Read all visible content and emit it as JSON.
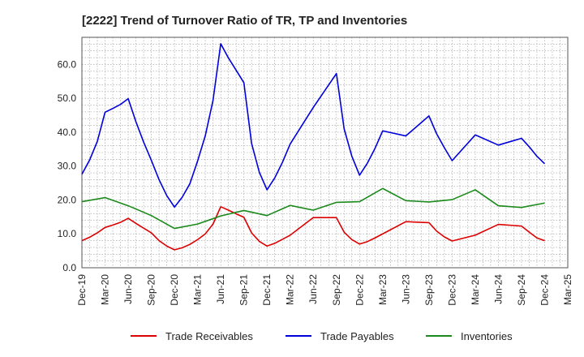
{
  "chart_data": {
    "type": "line",
    "title": "[2222]  Trend of Turnover Ratio of TR, TP and Inventories",
    "xlabel": "",
    "ylabel": "",
    "ylim": [
      0,
      68
    ],
    "y_ticks": [
      "0.0",
      "10.0",
      "20.0",
      "30.0",
      "40.0",
      "50.0",
      "60.0"
    ],
    "y_tick_values": [
      0,
      10,
      20,
      30,
      40,
      50,
      60
    ],
    "x_ticks": [
      "Dec-19",
      "Mar-20",
      "Jun-20",
      "Sep-20",
      "Dec-20",
      "Mar-21",
      "Jun-21",
      "Sep-21",
      "Dec-21",
      "Mar-22",
      "Jun-22",
      "Sep-22",
      "Dec-22",
      "Mar-23",
      "Jun-23",
      "Sep-23",
      "Dec-23",
      "Mar-24",
      "Jun-24",
      "Sep-24",
      "Dec-24",
      "Mar-25"
    ],
    "grid": true,
    "legend_position": "bottom",
    "series": [
      {
        "name": "Trade Receivables",
        "color": "#dd0000",
        "x": [
          "2019-12",
          "2020-01",
          "2020-02",
          "2020-03",
          "2020-04",
          "2020-05",
          "2020-06",
          "2020-07",
          "2020-08",
          "2020-09",
          "2020-10",
          "2020-11",
          "2020-12",
          "2021-01",
          "2021-02",
          "2021-03",
          "2021-04",
          "2021-05",
          "2021-06",
          "2021-07",
          "2021-08",
          "2021-09",
          "2021-10",
          "2021-11",
          "2021-12",
          "2022-01",
          "2022-02",
          "2022-03",
          "2022-06",
          "2022-09",
          "2022-10",
          "2022-11",
          "2022-12",
          "2023-01",
          "2023-02",
          "2023-03",
          "2023-06",
          "2023-09",
          "2023-10",
          "2023-11",
          "2023-12",
          "2024-03",
          "2024-06",
          "2024-09",
          "2024-10",
          "2024-11",
          "2024-12"
        ],
        "values": [
          8.0,
          9.0,
          10.3,
          11.9,
          12.6,
          13.4,
          14.6,
          13.1,
          11.7,
          10.3,
          8.0,
          6.4,
          5.3,
          5.9,
          6.9,
          8.3,
          10.0,
          12.9,
          18.0,
          17.0,
          15.9,
          14.9,
          10.3,
          7.8,
          6.4,
          7.2,
          8.4,
          9.6,
          14.8,
          14.8,
          10.5,
          8.3,
          7.0,
          7.7,
          8.8,
          10.0,
          13.6,
          13.3,
          10.8,
          9.1,
          7.9,
          9.6,
          12.8,
          12.3,
          10.5,
          8.8,
          8.0
        ]
      },
      {
        "name": "Trade Payables",
        "color": "#0000dd",
        "x": [
          "2019-12",
          "2020-01",
          "2020-02",
          "2020-03",
          "2020-04",
          "2020-05",
          "2020-06",
          "2020-07",
          "2020-08",
          "2020-09",
          "2020-10",
          "2020-11",
          "2020-12",
          "2021-01",
          "2021-02",
          "2021-03",
          "2021-04",
          "2021-05",
          "2021-06",
          "2021-07",
          "2021-08",
          "2021-09",
          "2021-10",
          "2021-11",
          "2021-12",
          "2022-01",
          "2022-02",
          "2022-03",
          "2022-06",
          "2022-09",
          "2022-10",
          "2022-11",
          "2022-12",
          "2023-01",
          "2023-02",
          "2023-03",
          "2023-06",
          "2023-09",
          "2023-10",
          "2023-11",
          "2023-12",
          "2024-03",
          "2024-06",
          "2024-09",
          "2024-10",
          "2024-11",
          "2024-12"
        ],
        "values": [
          27.6,
          31.8,
          37.3,
          45.9,
          47.0,
          48.2,
          49.9,
          43.1,
          37.1,
          31.7,
          26.0,
          21.3,
          17.9,
          20.8,
          24.8,
          31.5,
          39.0,
          49.4,
          66.1,
          61.9,
          58.3,
          54.6,
          36.7,
          28.2,
          23.0,
          26.5,
          31.1,
          36.5,
          47.3,
          57.3,
          41.0,
          32.9,
          27.3,
          30.8,
          35.2,
          40.4,
          38.9,
          44.8,
          39.5,
          35.4,
          31.6,
          39.2,
          36.2,
          38.2,
          35.7,
          32.9,
          30.7
        ]
      },
      {
        "name": "Inventories",
        "color": "#1a8a1a",
        "x": [
          "2019-12",
          "2020-03",
          "2020-06",
          "2020-09",
          "2020-12",
          "2021-03",
          "2021-06",
          "2021-09",
          "2021-12",
          "2022-03",
          "2022-06",
          "2022-09",
          "2022-12",
          "2023-03",
          "2023-06",
          "2023-09",
          "2023-12",
          "2024-03",
          "2024-06",
          "2024-09",
          "2024-12"
        ],
        "values": [
          19.5,
          20.7,
          18.3,
          15.4,
          11.6,
          12.9,
          15.3,
          16.9,
          15.4,
          18.4,
          17.0,
          19.3,
          19.5,
          23.4,
          19.8,
          19.4,
          20.1,
          23.0,
          18.3,
          17.8,
          19.1
        ]
      }
    ]
  }
}
